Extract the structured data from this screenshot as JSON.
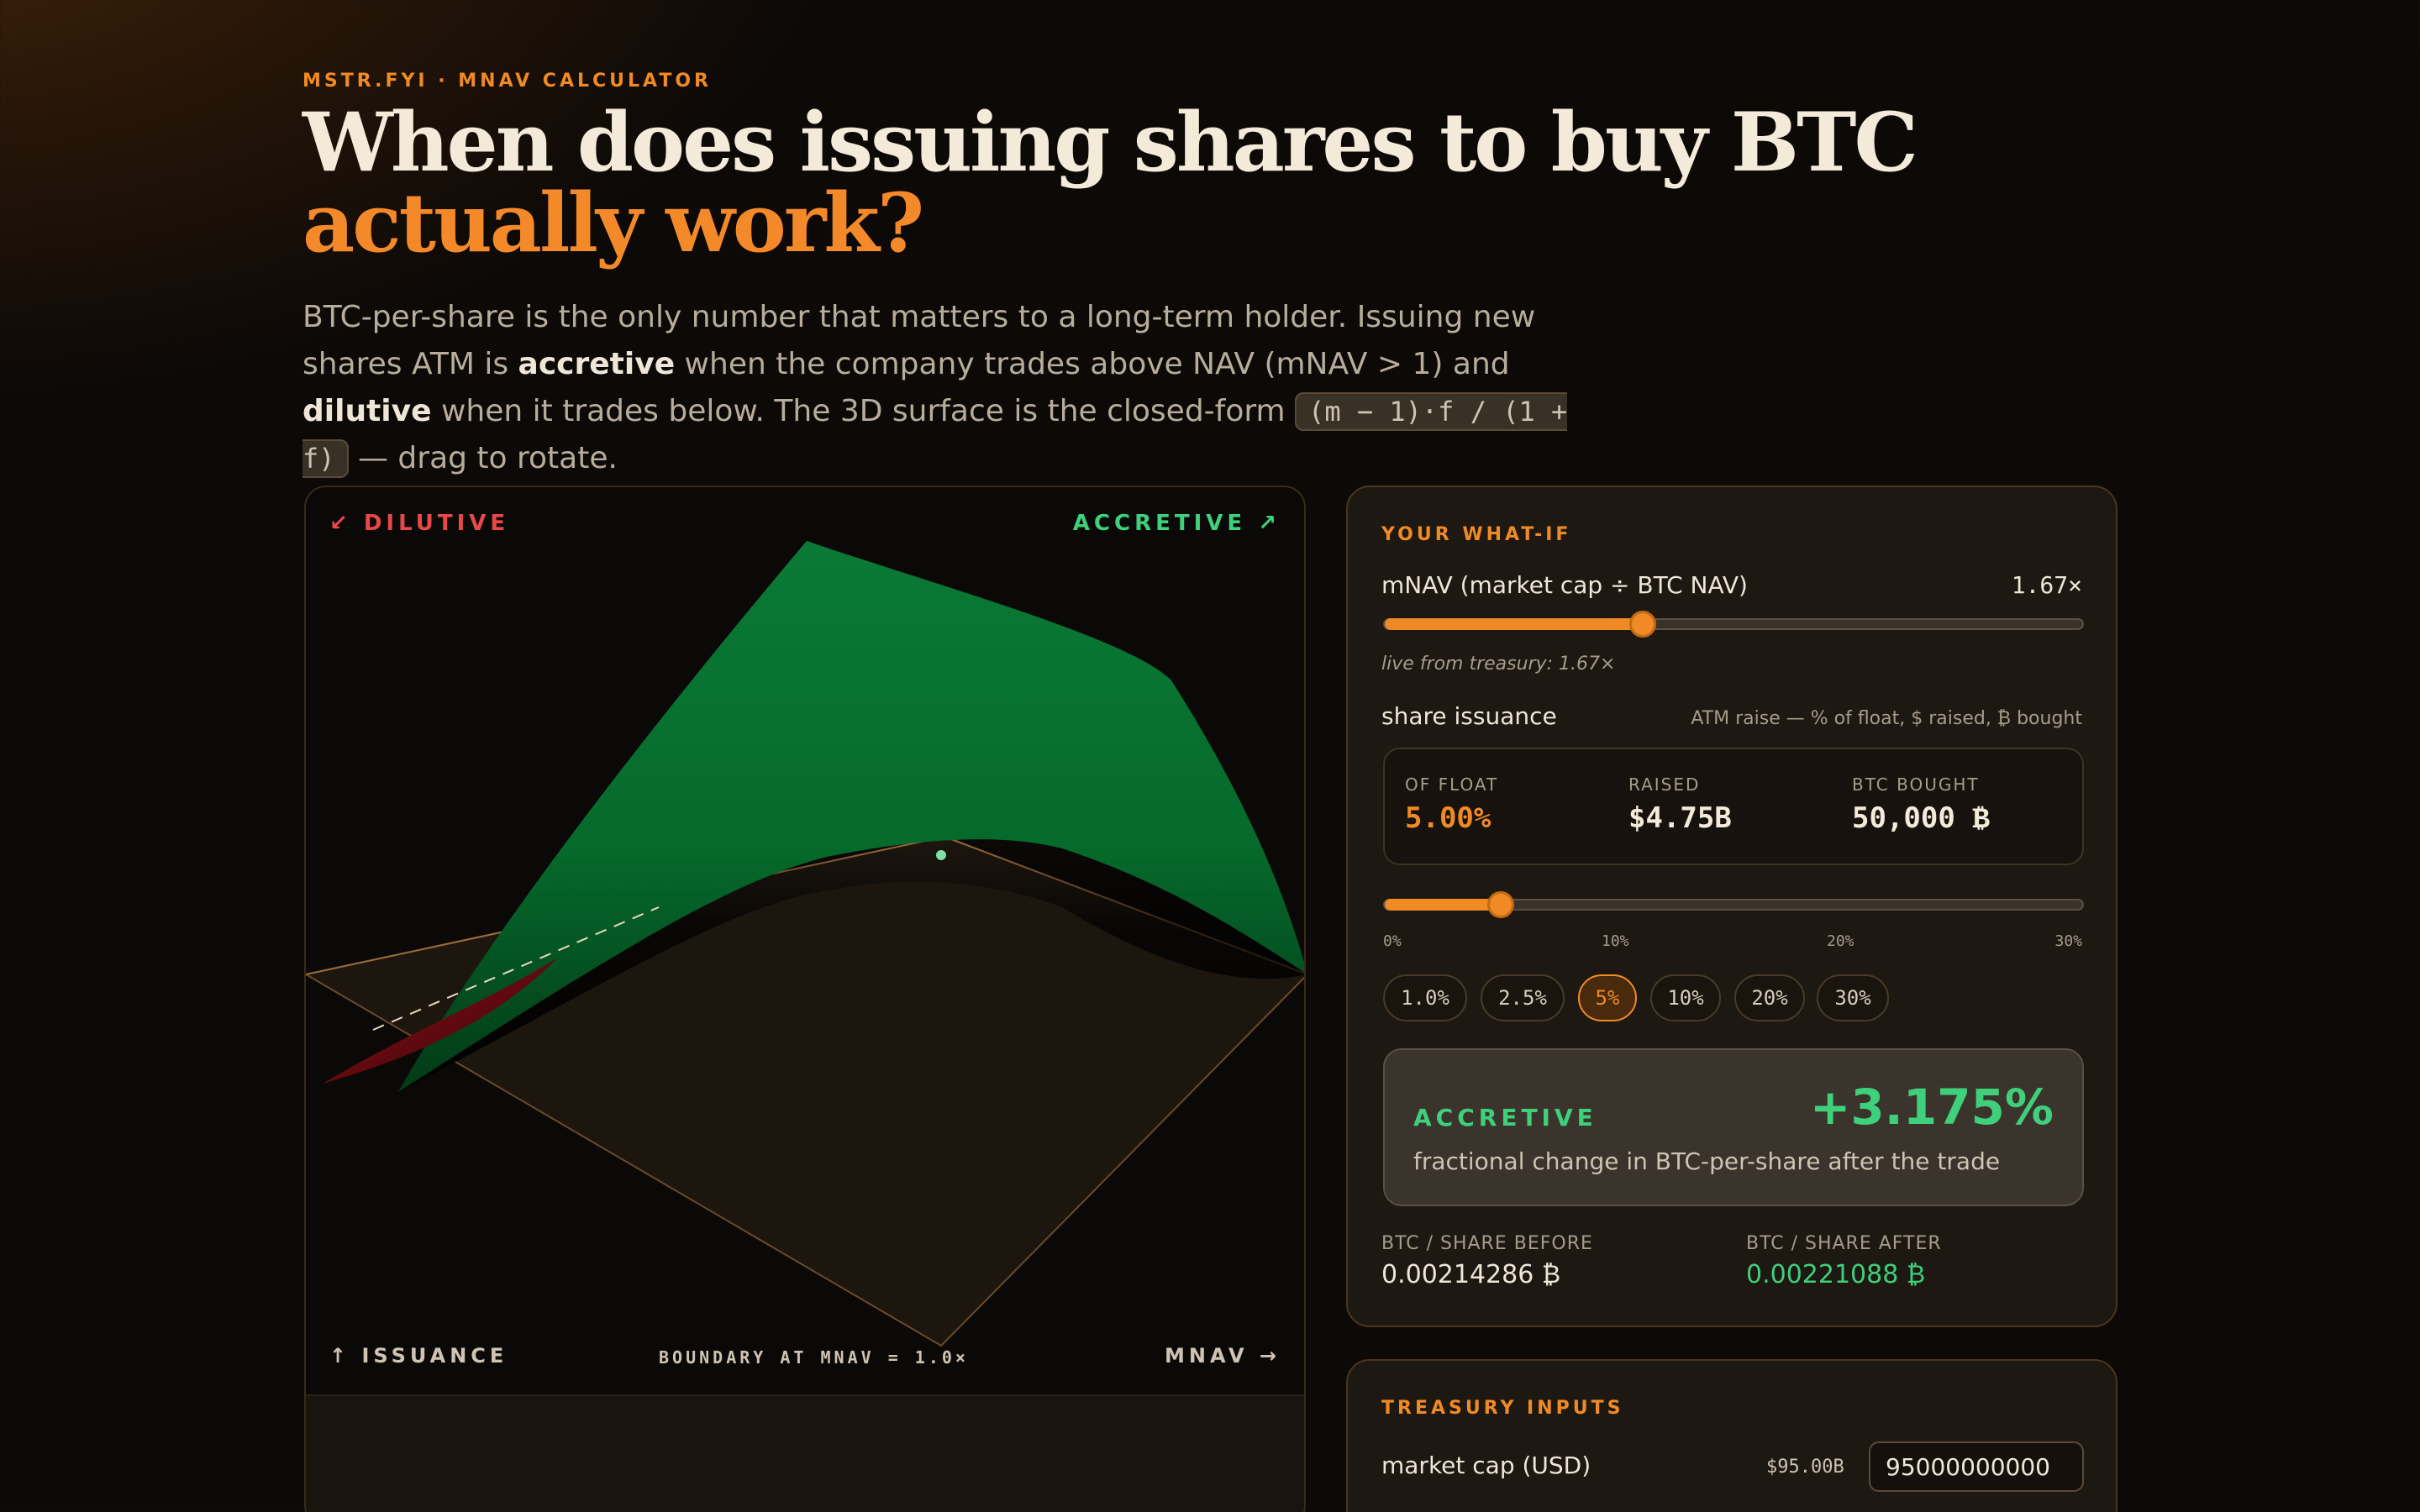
{
  "header": {
    "eyebrow": "MSTR.FYI · MNAV CALCULATOR",
    "headline_main": "When does issuing shares to buy BTC ",
    "headline_accent": "actually work?",
    "lede_1": "BTC-per-share is the only number that matters to a long-term holder. Issuing new shares ATM is ",
    "lede_bold_1": "accretive",
    "lede_2": " when the company trades above NAV (mNAV > 1) and ",
    "lede_bold_2": "dilutive",
    "lede_3": " when it trades below. The 3D surface is the closed-form ",
    "formula": "(m − 1)·f / (1 + f)",
    "lede_4": " — drag to rotate."
  },
  "plot": {
    "dilutive_label": "↙ DILUTIVE",
    "accretive_label": "ACCRETIVE ↗",
    "issuance_label": "↑ ISSUANCE",
    "boundary_label": "BOUNDARY AT MNAV = 1.0×",
    "mnav_label": "MNAV →"
  },
  "whatif": {
    "title": "YOUR WHAT-IF",
    "mnav_label": "mNAV (market cap ÷ BTC NAV)",
    "mnav_value": "1.67×",
    "mnav_fraction": 0.37,
    "live_note": "live from treasury: 1.67×",
    "issuance_label": "share issuance",
    "issuance_hint": "ATM raise — % of float, $ raised, ₿ bought",
    "stats": {
      "float_cap": "OF FLOAT",
      "float_val": "5.00%",
      "raised_cap": "RAISED",
      "raised_val": "$4.75B",
      "btc_cap": "BTC BOUGHT",
      "btc_val": "50,000 ₿"
    },
    "issuance_fraction": 0.1667,
    "ticks": [
      "0%",
      "10%",
      "20%",
      "30%"
    ],
    "chips": [
      "1.0%",
      "2.5%",
      "5%",
      "10%",
      "20%",
      "30%"
    ],
    "active_chip": "5%",
    "result": {
      "tag": "ACCRETIVE",
      "value": "+3.175%",
      "desc": "fractional change in BTC-per-share after the trade"
    },
    "before_cap": "BTC / SHARE BEFORE",
    "before_val": "0.00214286 ₿",
    "after_cap": "BTC / SHARE AFTER",
    "after_val": "0.00221088 ₿"
  },
  "treasury": {
    "title": "TREASURY INPUTS",
    "mcap_label": "market cap (USD)",
    "mcap_short": "$95.00B",
    "mcap_value": "95000000000"
  },
  "colors": {
    "accent": "#f08a24",
    "accretive": "#3fd07c",
    "dilutive": "#e8484a"
  }
}
